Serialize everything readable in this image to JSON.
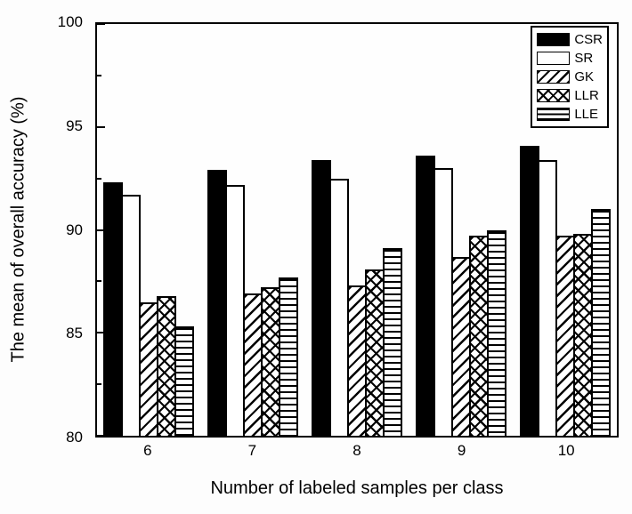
{
  "chart_data": {
    "type": "bar",
    "title": "",
    "xlabel": "Number of labeled samples per class",
    "ylabel": "The mean of overall accuracy (%)",
    "categories": [
      "6",
      "7",
      "8",
      "9",
      "10"
    ],
    "series": [
      {
        "name": "CSR",
        "pattern": "solid",
        "values": [
          92.3,
          92.9,
          93.4,
          93.6,
          94.1
        ]
      },
      {
        "name": "SR",
        "pattern": "plain",
        "values": [
          91.7,
          92.2,
          92.5,
          93.0,
          93.4
        ]
      },
      {
        "name": "GK",
        "pattern": "diagonal",
        "values": [
          86.5,
          86.9,
          87.3,
          88.7,
          89.7
        ]
      },
      {
        "name": "LLR",
        "pattern": "crosshatch",
        "values": [
          86.8,
          87.2,
          88.1,
          89.7,
          89.8
        ]
      },
      {
        "name": "LLE",
        "pattern": "hlines",
        "values": [
          85.3,
          87.7,
          89.1,
          90.0,
          91.0
        ]
      }
    ],
    "ylim": [
      80,
      100
    ],
    "yticks_major": [
      80,
      85,
      90,
      95,
      100
    ],
    "yticks_minor": [
      82.5,
      87.5,
      92.5,
      97.5
    ],
    "legend_position": "top-right",
    "grid": false,
    "bar_outline_color": "#000000",
    "axis_color": "#000000",
    "background_color": "#ffffff"
  }
}
